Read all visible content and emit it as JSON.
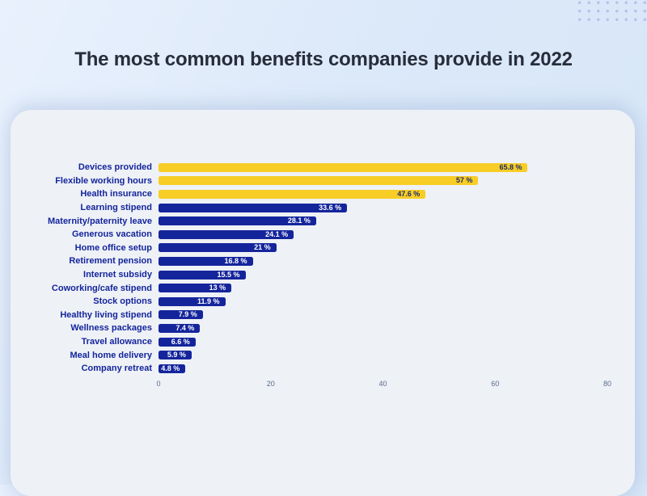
{
  "title": "The most common benefits companies provide in 2022",
  "chart_data": {
    "type": "bar",
    "orientation": "horizontal",
    "title": "The most common benefits companies provide in 2022",
    "categories": [
      "Devices provided",
      "Flexible working hours",
      "Health insurance",
      "Learning stipend",
      "Maternity/paternity leave",
      "Generous vacation",
      "Home office setup",
      "Retirement pension",
      "Internet subsidy",
      "Coworking/cafe stipend",
      "Stock options",
      "Healthy living stipend",
      "Wellness packages",
      "Travel allowance",
      "Meal home delivery",
      "Company retreat"
    ],
    "values": [
      65.8,
      57,
      47.6,
      33.6,
      28.1,
      24.1,
      21,
      16.8,
      15.5,
      13,
      11.9,
      7.9,
      7.4,
      6.6,
      5.9,
      4.8
    ],
    "value_labels": [
      "65.8 %",
      "57 %",
      "47.6 %",
      "33.6 %",
      "28.1 %",
      "24.1 %",
      "21 %",
      "16.8 %",
      "15.5 %",
      "13 %",
      "11.9 %",
      "7.9 %",
      "7.4 %",
      "6.6 %",
      "5.9 %",
      "4.8 %"
    ],
    "xlim": [
      0,
      80
    ],
    "x_ticks": [
      0,
      20,
      40,
      60,
      80
    ],
    "grid": false,
    "legend": false,
    "highlight_count": 3,
    "colors": {
      "highlight_bar": "#f8cd25",
      "default_bar": "#14259c",
      "category_text": "#14259c",
      "value_text_on_highlight": "#1c2a6e",
      "value_text_on_default": "#ffffff",
      "tick_text": "#5b6b90"
    }
  },
  "page": {
    "background": "#dce9f9",
    "card_background": "#eef1f6",
    "title_color": "#272d3a",
    "dots_color": "#b7c2ec"
  }
}
